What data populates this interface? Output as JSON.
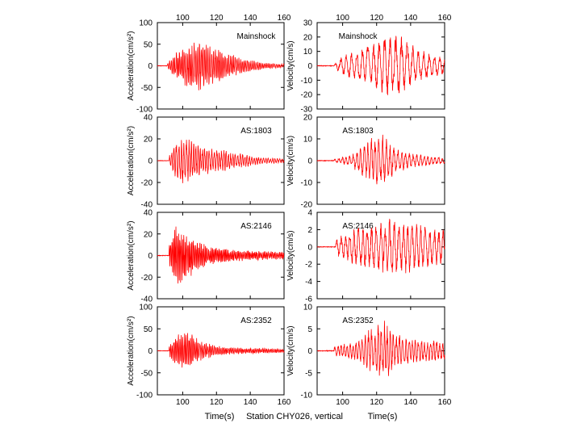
{
  "figure_caption": "Station CHY026, vertical",
  "xlabel": "Time(s)",
  "accent_color": "#ff0000",
  "chart_data": [
    {
      "type": "line",
      "column": "acceleration",
      "row": 0,
      "annotation": "Mainshock",
      "ylabel": "Acceleration(cm/s²)",
      "xlim": [
        85,
        160
      ],
      "ylim": [
        -100,
        100
      ],
      "x_ticks": [
        100,
        120,
        140,
        160
      ],
      "y_ticks": [
        -100,
        -50,
        0,
        50,
        100
      ],
      "top_tick_labels": true,
      "bottom_tick_labels": false,
      "envelope": {
        "start": 91,
        "ramp": [
          [
            91,
            0.1
          ],
          [
            95,
            0.5
          ],
          [
            100,
            0.8
          ],
          [
            110,
            1.0
          ],
          [
            120,
            0.7
          ],
          [
            135,
            0.3
          ],
          [
            150,
            0.12
          ],
          [
            160,
            0.08
          ]
        ],
        "peak": 55,
        "period": 1.0
      }
    },
    {
      "type": "line",
      "column": "velocity",
      "row": 0,
      "annotation": "Mainshock",
      "ylabel": "Velocity(cm/s)",
      "xlim": [
        85,
        160
      ],
      "ylim": [
        -30,
        30
      ],
      "x_ticks": [
        100,
        120,
        140,
        160
      ],
      "y_ticks": [
        -30,
        -20,
        -10,
        0,
        10,
        20,
        30
      ],
      "top_tick_labels": true,
      "bottom_tick_labels": false,
      "envelope": {
        "start": 95,
        "ramp": [
          [
            95,
            0.05
          ],
          [
            100,
            0.3
          ],
          [
            110,
            0.5
          ],
          [
            125,
            0.9
          ],
          [
            132,
            1.0
          ],
          [
            145,
            0.5
          ],
          [
            160,
            0.25
          ]
        ],
        "peak": 22,
        "period": 3.2
      }
    },
    {
      "type": "line",
      "column": "acceleration",
      "row": 1,
      "annotation": "AS:1803",
      "ylabel": "Acceleration(cm/s²)",
      "xlim": [
        85,
        160
      ],
      "ylim": [
        -40,
        40
      ],
      "x_ticks": [
        100,
        120,
        140,
        160
      ],
      "y_ticks": [
        -40,
        -20,
        0,
        20,
        40
      ],
      "top_tick_labels": false,
      "bottom_tick_labels": false,
      "envelope": {
        "start": 92,
        "ramp": [
          [
            92,
            0.2
          ],
          [
            96,
            0.8
          ],
          [
            102,
            1.0
          ],
          [
            110,
            0.6
          ],
          [
            120,
            0.5
          ],
          [
            130,
            0.35
          ],
          [
            145,
            0.15
          ],
          [
            160,
            0.08
          ]
        ],
        "peak": 22,
        "period": 1.4
      }
    },
    {
      "type": "line",
      "column": "velocity",
      "row": 1,
      "annotation": "AS:1803",
      "ylabel": "Velocity(cm/s)",
      "xlim": [
        85,
        160
      ],
      "ylim": [
        -20,
        20
      ],
      "x_ticks": [
        100,
        120,
        140,
        160
      ],
      "y_ticks": [
        -20,
        -10,
        0,
        10,
        20
      ],
      "top_tick_labels": false,
      "bottom_tick_labels": false,
      "envelope": {
        "start": 95,
        "ramp": [
          [
            95,
            0.05
          ],
          [
            105,
            0.2
          ],
          [
            115,
            0.7
          ],
          [
            122,
            1.0
          ],
          [
            130,
            0.5
          ],
          [
            140,
            0.25
          ],
          [
            160,
            0.1
          ]
        ],
        "peak": 13,
        "period": 2.2
      }
    },
    {
      "type": "line",
      "column": "acceleration",
      "row": 2,
      "annotation": "AS:2146",
      "ylabel": "Acceleration(cm/s²)",
      "xlim": [
        85,
        160
      ],
      "ylim": [
        -40,
        40
      ],
      "x_ticks": [
        100,
        120,
        140,
        160
      ],
      "y_ticks": [
        -40,
        -20,
        0,
        20,
        40
      ],
      "top_tick_labels": false,
      "bottom_tick_labels": false,
      "envelope": {
        "start": 92,
        "ramp": [
          [
            92,
            0.4
          ],
          [
            96,
            1.0
          ],
          [
            104,
            0.7
          ],
          [
            115,
            0.3
          ],
          [
            130,
            0.18
          ],
          [
            160,
            0.12
          ]
        ],
        "peak": 28,
        "period": 0.8
      }
    },
    {
      "type": "line",
      "column": "velocity",
      "row": 2,
      "annotation": "AS:2146",
      "ylabel": "Velocity(cm/s)",
      "xlim": [
        85,
        160
      ],
      "ylim": [
        -6,
        4
      ],
      "x_ticks": [
        100,
        120,
        140,
        160
      ],
      "y_ticks": [
        -6,
        -4,
        -2,
        0,
        2,
        4
      ],
      "top_tick_labels": false,
      "bottom_tick_labels": false,
      "envelope": {
        "start": 96,
        "ramp": [
          [
            96,
            0.3
          ],
          [
            105,
            0.6
          ],
          [
            115,
            0.8
          ],
          [
            128,
            1.0
          ],
          [
            140,
            0.9
          ],
          [
            160,
            0.6
          ]
        ],
        "peak": 3.2,
        "period": 2.6
      }
    },
    {
      "type": "line",
      "column": "acceleration",
      "row": 3,
      "annotation": "AS:2352",
      "ylabel": "Acceleration(cm/s²)",
      "xlim": [
        85,
        160
      ],
      "ylim": [
        -100,
        100
      ],
      "x_ticks": [
        100,
        120,
        140,
        160
      ],
      "y_ticks": [
        -100,
        -50,
        0,
        50,
        100
      ],
      "top_tick_labels": false,
      "bottom_tick_labels": true,
      "envelope": {
        "start": 92,
        "ramp": [
          [
            92,
            0.3
          ],
          [
            97,
            0.8
          ],
          [
            103,
            1.0
          ],
          [
            110,
            0.5
          ],
          [
            120,
            0.25
          ],
          [
            135,
            0.15
          ],
          [
            160,
            0.1
          ]
        ],
        "peak": 45,
        "period": 0.9
      }
    },
    {
      "type": "line",
      "column": "velocity",
      "row": 3,
      "annotation": "AS:2352",
      "ylabel": "Velocity(cm/s)",
      "xlim": [
        85,
        160
      ],
      "ylim": [
        -10,
        10
      ],
      "x_ticks": [
        100,
        120,
        140,
        160
      ],
      "y_ticks": [
        -10,
        -5,
        0,
        5,
        10
      ],
      "top_tick_labels": false,
      "bottom_tick_labels": true,
      "envelope": {
        "start": 95,
        "ramp": [
          [
            95,
            0.15
          ],
          [
            110,
            0.35
          ],
          [
            118,
            0.8
          ],
          [
            124,
            1.0
          ],
          [
            132,
            0.5
          ],
          [
            145,
            0.35
          ],
          [
            160,
            0.3
          ]
        ],
        "peak": 7,
        "period": 1.8
      }
    }
  ]
}
